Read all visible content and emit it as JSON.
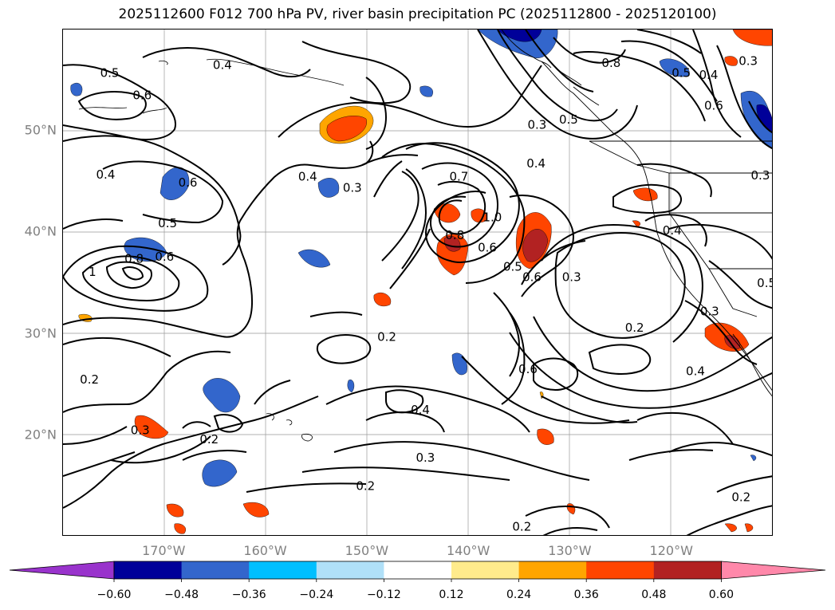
{
  "title": "2025112600 F012 700 hPa PV, river basin precipitation PC (2025112800 - 2025120100)",
  "map": {
    "lat_labels": [
      {
        "label": "50°N",
        "lat": 50
      },
      {
        "label": "40°N",
        "lat": 40
      },
      {
        "label": "30°N",
        "lat": 30
      },
      {
        "label": "20°N",
        "lat": 20
      }
    ],
    "lon_labels": [
      {
        "label": "170°W",
        "lon": -170
      },
      {
        "label": "160°W",
        "lon": -160
      },
      {
        "label": "150°W",
        "lon": -150
      },
      {
        "label": "140°W",
        "lon": -140
      },
      {
        "label": "130°W",
        "lon": -130
      },
      {
        "label": "120°W",
        "lon": -120
      }
    ],
    "extent": {
      "lon_min": -180,
      "lon_max": -110,
      "lat_min": 10,
      "lat_max": 60
    },
    "contour_labels": [
      {
        "text": "0.5",
        "lon": -175.4,
        "lat": 55.7
      },
      {
        "text": "0.6",
        "lon": -172.2,
        "lat": 53.5
      },
      {
        "text": "0.4",
        "lon": -164.3,
        "lat": 56.5
      },
      {
        "text": "0.4",
        "lon": -175.8,
        "lat": 45.7
      },
      {
        "text": "0.6",
        "lon": -167.7,
        "lat": 44.9
      },
      {
        "text": "0.5",
        "lon": -169.7,
        "lat": 40.9
      },
      {
        "text": "0.8",
        "lon": -173.0,
        "lat": 37.4
      },
      {
        "text": "0.6",
        "lon": -170.0,
        "lat": 37.6
      },
      {
        "text": "1",
        "lon": -177.1,
        "lat": 36.1
      },
      {
        "text": "0.4",
        "lon": -155.9,
        "lat": 45.5
      },
      {
        "text": "0.3",
        "lon": -151.5,
        "lat": 44.4
      },
      {
        "text": "0.3",
        "lon": -133.3,
        "lat": 50.6
      },
      {
        "text": "0.4",
        "lon": -133.4,
        "lat": 46.8
      },
      {
        "text": "0.7",
        "lon": -141.0,
        "lat": 45.5
      },
      {
        "text": "1.0",
        "lon": -137.7,
        "lat": 41.5
      },
      {
        "text": "0.8",
        "lon": -141.4,
        "lat": 39.7
      },
      {
        "text": "0.6",
        "lon": -138.2,
        "lat": 38.5
      },
      {
        "text": "0.5",
        "lon": -135.7,
        "lat": 36.6
      },
      {
        "text": "0.6",
        "lon": -133.8,
        "lat": 35.6
      },
      {
        "text": "0.3",
        "lon": -129.9,
        "lat": 35.6
      },
      {
        "text": "0.5",
        "lon": -130.2,
        "lat": 51.1
      },
      {
        "text": "0.8",
        "lon": -126.0,
        "lat": 56.7
      },
      {
        "text": "0.4",
        "lon": -120.0,
        "lat": 40.2
      },
      {
        "text": "0.5",
        "lon": -119.1,
        "lat": 55.7
      },
      {
        "text": "0.4",
        "lon": -116.4,
        "lat": 55.5
      },
      {
        "text": "0.6",
        "lon": -115.9,
        "lat": 52.5
      },
      {
        "text": "0.3",
        "lon": -112.5,
        "lat": 56.9
      },
      {
        "text": "0.3",
        "lon": -111.3,
        "lat": 45.6
      },
      {
        "text": "0.5",
        "lon": -110.7,
        "lat": 35.0
      },
      {
        "text": "0.3",
        "lon": -116.3,
        "lat": 32.2
      },
      {
        "text": "0.2",
        "lon": -123.7,
        "lat": 30.6
      },
      {
        "text": "0.4",
        "lon": -117.7,
        "lat": 26.3
      },
      {
        "text": "0.6",
        "lon": -134.2,
        "lat": 26.5
      },
      {
        "text": "0.2",
        "lon": -148.1,
        "lat": 29.7
      },
      {
        "text": "0.4",
        "lon": -144.8,
        "lat": 22.5
      },
      {
        "text": "0.3",
        "lon": -144.3,
        "lat": 17.8
      },
      {
        "text": "0.2",
        "lon": -150.2,
        "lat": 15.0
      },
      {
        "text": "0.2",
        "lon": -165.6,
        "lat": 19.6
      },
      {
        "text": "0.3",
        "lon": -172.4,
        "lat": 20.5
      },
      {
        "text": "0.2",
        "lon": -177.4,
        "lat": 25.5
      },
      {
        "text": "0.2",
        "lon": -113.2,
        "lat": 13.9
      },
      {
        "text": "0.2",
        "lon": -134.8,
        "lat": 11.0
      }
    ]
  },
  "colorbar": {
    "colors": [
      "#9933cc",
      "#000099",
      "#3366cc",
      "#00bfff",
      "#b0e0f8",
      "#ffffff",
      "#ffeb8c",
      "#ffa500",
      "#ff4500",
      "#b22222",
      "#ff88aa"
    ],
    "ticks": [
      "−0.60",
      "−0.48",
      "−0.36",
      "−0.24",
      "−0.12",
      "0.12",
      "0.24",
      "0.36",
      "0.48",
      "0.60"
    ]
  }
}
